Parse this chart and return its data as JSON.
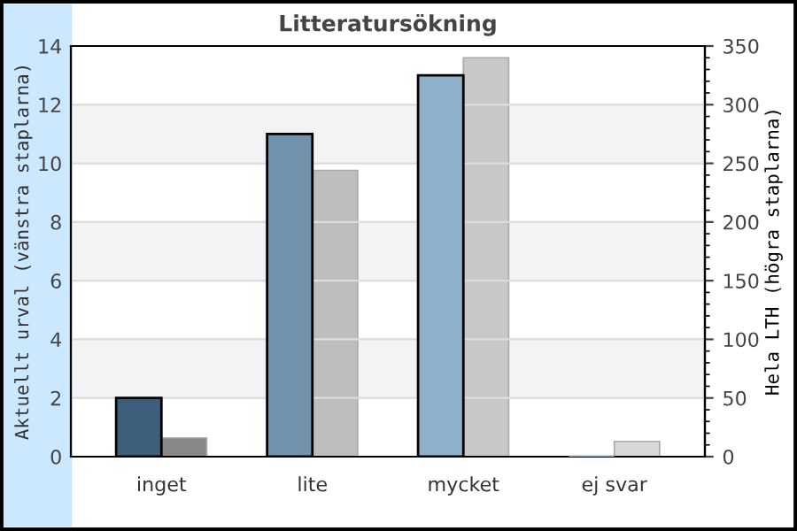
{
  "chart_data": {
    "type": "bar",
    "title": "Litteratursökning",
    "ylabel": "Aktuellt urval (vänstra staplarna)",
    "y2label": "Hela LTH (högra staplarna)",
    "categories": [
      "inget",
      "lite",
      "mycket",
      "ej svar"
    ],
    "series": [
      {
        "colors": [
          "#3e5f7c",
          "#7293ad",
          "#8eb0cb",
          "#8eb0cb"
        ],
        "values": [
          2,
          11,
          13,
          0
        ]
      },
      {
        "colors": [
          "#888888",
          "#bebebe",
          "#c8c8c8",
          "#d8d8d8"
        ],
        "values": [
          16,
          244,
          340,
          13
        ],
        "axis": "y2"
      }
    ],
    "ylim": [
      0,
      14
    ],
    "yticks": [
      0,
      2,
      4,
      6,
      8,
      10,
      12,
      14
    ],
    "y2lim": [
      0,
      350
    ],
    "y2ticks": [
      0,
      50,
      100,
      150,
      200,
      250,
      300,
      350
    ],
    "grid": "y"
  }
}
